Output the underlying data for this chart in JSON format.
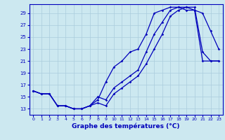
{
  "title": "Graphe des températures (°C)",
  "bg_color": "#cce8f0",
  "line_color": "#0000bb",
  "grid_color": "#aaccdd",
  "xlim": [
    -0.5,
    23.5
  ],
  "ylim": [
    12,
    30.5
  ],
  "xticks": [
    0,
    1,
    2,
    3,
    4,
    5,
    6,
    7,
    8,
    9,
    10,
    11,
    12,
    13,
    14,
    15,
    16,
    17,
    18,
    19,
    20,
    21,
    22,
    23
  ],
  "yticks": [
    13,
    15,
    17,
    19,
    21,
    23,
    25,
    27,
    29
  ],
  "series1": {
    "x": [
      0,
      1,
      2,
      3,
      4,
      5,
      6,
      7,
      8,
      9,
      10,
      11,
      12,
      13,
      14,
      15,
      16,
      17,
      18,
      19,
      20,
      21,
      22,
      23
    ],
    "y": [
      16,
      15.5,
      15.5,
      13.5,
      13.5,
      13,
      13,
      13.5,
      14,
      13.5,
      15.5,
      16.5,
      17.5,
      18.5,
      20.5,
      23,
      25.5,
      28.5,
      29.5,
      30,
      29.5,
      29,
      26,
      23
    ]
  },
  "series2": {
    "x": [
      0,
      1,
      2,
      3,
      4,
      5,
      6,
      7,
      8,
      9,
      10,
      11,
      12,
      13,
      14,
      15,
      16,
      17,
      18,
      19,
      20,
      21,
      22,
      23
    ],
    "y": [
      16,
      15.5,
      15.5,
      13.5,
      13.5,
      13,
      13,
      13.5,
      14.5,
      17.5,
      20,
      21,
      22.5,
      23,
      25.5,
      29,
      29.5,
      30,
      30,
      29.5,
      29.5,
      21,
      21,
      21
    ]
  },
  "series3": {
    "x": [
      0,
      1,
      2,
      3,
      4,
      5,
      6,
      7,
      8,
      9,
      10,
      11,
      12,
      13,
      14,
      15,
      16,
      17,
      18,
      19,
      20,
      21,
      22,
      23
    ],
    "y": [
      16,
      15.5,
      15.5,
      13.5,
      13.5,
      13,
      13,
      13.5,
      15,
      14.5,
      16.5,
      17.5,
      18.5,
      19.5,
      22.5,
      25.5,
      27.5,
      29.5,
      30,
      30,
      30,
      22.5,
      21,
      21
    ]
  }
}
